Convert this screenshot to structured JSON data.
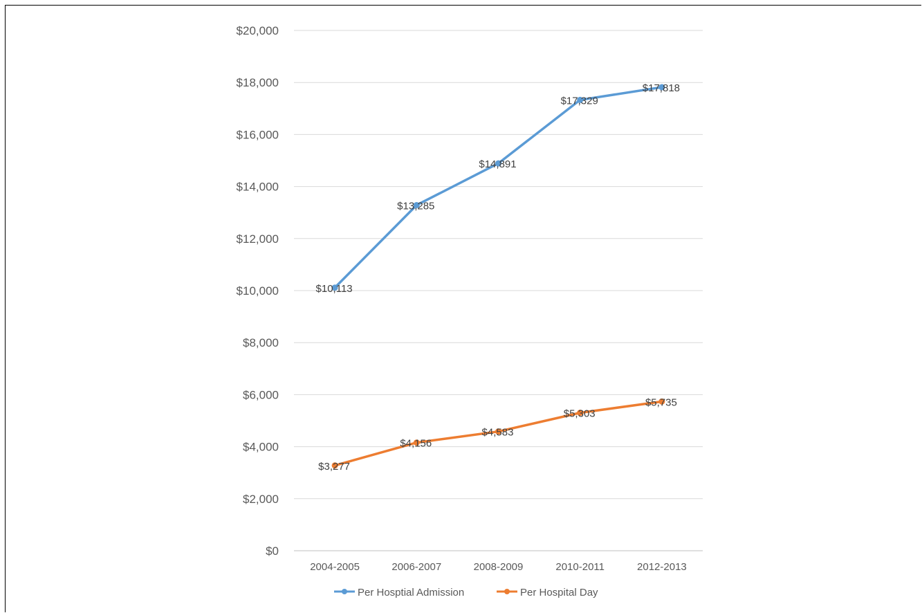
{
  "chart_data": {
    "type": "line",
    "title": "",
    "xlabel": "",
    "ylabel": "",
    "categories": [
      "2004-2005",
      "2006-2007",
      "2008-2009",
      "2010-2011",
      "2012-2013"
    ],
    "ylim": [
      0,
      20000
    ],
    "yticks": [
      0,
      2000,
      4000,
      6000,
      8000,
      10000,
      12000,
      14000,
      16000,
      18000,
      20000
    ],
    "ytick_labels": [
      "$0",
      "$2,000",
      "$4,000",
      "$6,000",
      "$8,000",
      "$10,000",
      "$12,000",
      "$14,000",
      "$16,000",
      "$18,000",
      "$20,000"
    ],
    "grid": true,
    "legend_position": "bottom",
    "series": [
      {
        "name": "Per Hosptial Admission",
        "color": "#5B9BD5",
        "values": [
          10113,
          13285,
          14891,
          17329,
          17818
        ],
        "labels": [
          "$10,113",
          "$13,285",
          "$14,891",
          "$17,329",
          "$17,818"
        ]
      },
      {
        "name": "Per Hospital Day",
        "color": "#ED7D31",
        "values": [
          3277,
          4156,
          4583,
          5303,
          5735
        ],
        "labels": [
          "$3,277",
          "$4,156",
          "$4,583",
          "$5,303",
          "$5,735"
        ]
      }
    ]
  }
}
